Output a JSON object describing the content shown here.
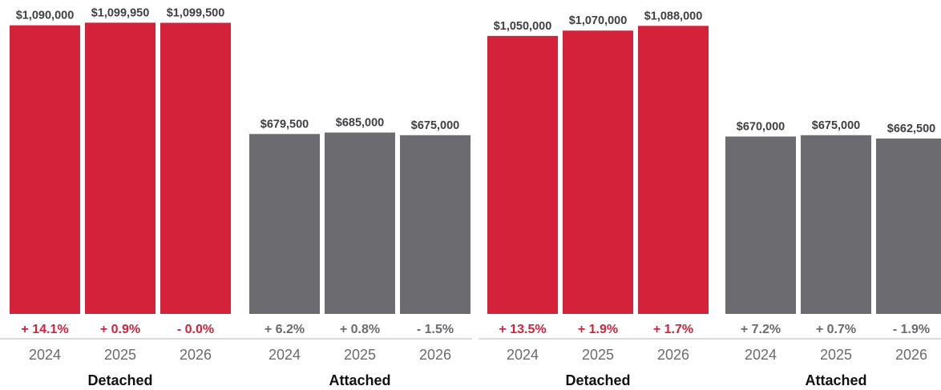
{
  "chart_data": {
    "type": "bar",
    "ylim": [
      0,
      1110000
    ],
    "colors": {
      "detached": "#d4223b",
      "attached": "#6b6b70",
      "axis": "#cfcfd2"
    },
    "groups": [
      {
        "label": "Detached",
        "years": [
          "2024",
          "2025",
          "2026"
        ],
        "values": [
          1090000,
          1099950,
          1099500
        ],
        "value_labels": [
          "$1,090,000",
          "$1,099,950",
          "$1,099,500"
        ],
        "changes": [
          "+ 14.1%",
          "+ 0.9%",
          "- 0.0%"
        ]
      },
      {
        "label": "Attached",
        "years": [
          "2024",
          "2025",
          "2026"
        ],
        "values": [
          679500,
          685000,
          675000
        ],
        "value_labels": [
          "$679,500",
          "$685,000",
          "$675,000"
        ],
        "changes": [
          "+ 6.2%",
          "+ 0.8%",
          "- 1.5%"
        ]
      },
      {
        "label": "Detached",
        "years": [
          "2024",
          "2025",
          "2026"
        ],
        "values": [
          1050000,
          1070000,
          1088000
        ],
        "value_labels": [
          "$1,050,000",
          "$1,070,000",
          "$1,088,000"
        ],
        "changes": [
          "+ 13.5%",
          "+ 1.9%",
          "+ 1.7%"
        ]
      },
      {
        "label": "Attached",
        "years": [
          "2024",
          "2025",
          "2026"
        ],
        "values": [
          670000,
          675000,
          662500
        ],
        "value_labels": [
          "$670,000",
          "$675,000",
          "$662,500"
        ],
        "changes": [
          "+ 7.2%",
          "+ 0.7%",
          "- 1.9%"
        ]
      }
    ]
  }
}
